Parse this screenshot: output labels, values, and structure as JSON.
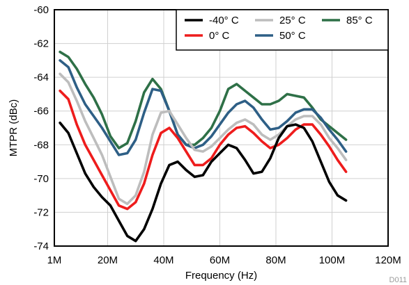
{
  "chart_data": {
    "type": "line",
    "xlabel": "Frequency (Hz)",
    "ylabel": "MTPR (dBc)",
    "xlim": [
      1,
      120
    ],
    "ylim": [
      -74,
      -60
    ],
    "x_ticks": [
      1,
      20,
      40,
      60,
      80,
      100,
      120
    ],
    "x_tick_labels": [
      "1M",
      "20M",
      "40M",
      "60M",
      "80M",
      "100M",
      "120M"
    ],
    "y_ticks": [
      -74,
      -72,
      -70,
      -68,
      -66,
      -64,
      -62,
      -60
    ],
    "y_tick_labels": [
      "-74",
      "-72",
      "-70",
      "-68",
      "-66",
      "-64",
      "-62",
      "-60"
    ],
    "grid": true,
    "legend_position": "top-right",
    "footnote": "D011",
    "series": [
      {
        "name": "-40° C",
        "color": "#000000",
        "x": [
          3,
          6,
          9,
          12,
          15,
          18,
          21,
          24,
          27,
          30,
          33,
          36,
          39,
          42,
          45,
          48,
          51,
          54,
          57,
          60,
          63,
          66,
          69,
          72,
          75,
          78,
          81,
          84,
          87,
          90,
          93,
          96,
          99,
          102,
          105
        ],
        "y": [
          -66.7,
          -67.3,
          -68.5,
          -69.7,
          -70.5,
          -71.1,
          -71.6,
          -72.5,
          -73.4,
          -73.7,
          -73.0,
          -71.8,
          -70.3,
          -69.2,
          -69.0,
          -69.5,
          -69.9,
          -69.8,
          -69.0,
          -68.5,
          -68.0,
          -68.2,
          -68.9,
          -69.7,
          -69.6,
          -68.8,
          -67.6,
          -66.9,
          -66.8,
          -67.0,
          -67.8,
          -69.0,
          -70.2,
          -71.0,
          -71.3
        ]
      },
      {
        "name": "0° C",
        "color": "#ee1c1c",
        "x": [
          3,
          6,
          9,
          12,
          15,
          18,
          21,
          24,
          27,
          30,
          33,
          36,
          39,
          42,
          45,
          48,
          51,
          54,
          57,
          60,
          63,
          66,
          69,
          72,
          75,
          78,
          81,
          84,
          87,
          90,
          93,
          96,
          99,
          102,
          105
        ],
        "y": [
          -64.8,
          -65.3,
          -66.8,
          -68.0,
          -68.9,
          -69.8,
          -70.7,
          -71.6,
          -71.8,
          -71.4,
          -70.3,
          -68.6,
          -67.3,
          -67.0,
          -67.6,
          -68.4,
          -69.2,
          -69.2,
          -68.8,
          -68.0,
          -67.4,
          -67.0,
          -66.9,
          -67.3,
          -67.8,
          -68.2,
          -68.0,
          -67.6,
          -67.1,
          -66.8,
          -66.8,
          -67.4,
          -68.1,
          -68.9,
          -69.6
        ]
      },
      {
        "name": "25° C",
        "color": "#bdbdbd",
        "x": [
          3,
          6,
          9,
          12,
          15,
          18,
          21,
          24,
          27,
          30,
          33,
          36,
          39,
          42,
          45,
          48,
          51,
          54,
          57,
          60,
          63,
          66,
          69,
          72,
          75,
          78,
          81,
          84,
          87,
          90,
          93,
          96,
          99,
          102,
          105
        ],
        "y": [
          -63.8,
          -64.3,
          -65.4,
          -66.6,
          -67.6,
          -68.6,
          -69.9,
          -71.2,
          -71.5,
          -71.0,
          -69.6,
          -67.4,
          -66.1,
          -66.0,
          -66.8,
          -67.6,
          -68.3,
          -68.4,
          -68.1,
          -67.6,
          -67.1,
          -66.7,
          -66.5,
          -66.8,
          -67.4,
          -67.7,
          -67.4,
          -66.9,
          -66.5,
          -66.3,
          -66.3,
          -66.8,
          -67.6,
          -68.2,
          -68.9
        ]
      },
      {
        "name": "50° C",
        "color": "#2e5f86",
        "x": [
          3,
          6,
          9,
          12,
          15,
          18,
          21,
          24,
          27,
          30,
          33,
          36,
          39,
          42,
          45,
          48,
          51,
          54,
          57,
          60,
          63,
          66,
          69,
          72,
          75,
          78,
          81,
          84,
          87,
          90,
          93,
          96,
          99,
          102,
          105
        ],
        "y": [
          -63.0,
          -63.4,
          -64.6,
          -65.6,
          -66.3,
          -67.0,
          -67.8,
          -68.6,
          -68.5,
          -67.7,
          -66.1,
          -64.7,
          -64.8,
          -66.0,
          -67.4,
          -68.0,
          -68.2,
          -68.0,
          -67.5,
          -66.8,
          -66.1,
          -65.6,
          -65.4,
          -65.8,
          -66.5,
          -67.1,
          -67.0,
          -66.6,
          -66.1,
          -65.9,
          -65.9,
          -66.4,
          -67.1,
          -67.7,
          -68.4
        ]
      },
      {
        "name": "85° C",
        "color": "#2e7047",
        "x": [
          3,
          6,
          9,
          12,
          15,
          18,
          21,
          24,
          27,
          30,
          33,
          36,
          39,
          42,
          45,
          48,
          51,
          54,
          57,
          60,
          63,
          66,
          69,
          72,
          75,
          78,
          81,
          84,
          87,
          90,
          93,
          96,
          99,
          102,
          105
        ],
        "y": [
          -62.5,
          -62.8,
          -63.5,
          -64.4,
          -65.2,
          -66.2,
          -67.5,
          -68.2,
          -67.9,
          -66.6,
          -64.9,
          -64.1,
          -64.7,
          -66.0,
          -67.4,
          -68.0,
          -68.0,
          -67.6,
          -67.0,
          -66.0,
          -64.7,
          -64.4,
          -64.8,
          -65.2,
          -65.6,
          -65.6,
          -65.4,
          -65.0,
          -65.1,
          -65.2,
          -65.8,
          -66.5,
          -66.9,
          -67.3,
          -67.7
        ]
      }
    ],
    "legend_rows": [
      [
        "-40° C",
        "25° C",
        "85° C"
      ],
      [
        "0° C",
        "50° C"
      ]
    ]
  }
}
